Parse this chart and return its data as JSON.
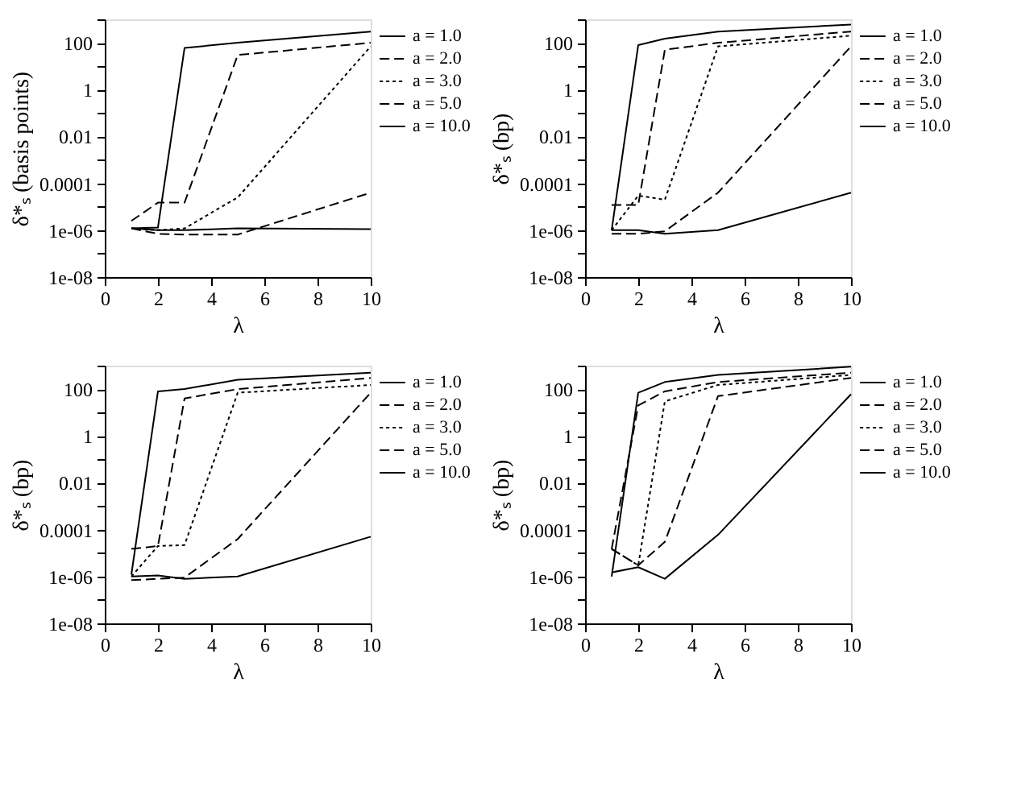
{
  "chart_data": [
    {
      "type": "line",
      "xlabel": "λ",
      "ylabel": "δ*ₛ (basis points)",
      "log": "y",
      "legend": "top right",
      "x": [
        1,
        2,
        3,
        5,
        10
      ],
      "xlim": [
        0,
        10
      ],
      "xticks": [
        0,
        2,
        4,
        6,
        8,
        10
      ],
      "ylim": [
        1e-08,
        1000
      ],
      "yticks": [
        {
          "value": 1e-08,
          "label": "1e-08"
        },
        {
          "value": 1e-07,
          "label": null
        },
        {
          "value": 1e-06,
          "label": "1e-06"
        },
        {
          "value": 1e-05,
          "label": null
        },
        0.0001,
        {
          "value": 0.001,
          "label": null
        },
        0.01,
        {
          "value": 0.1,
          "label": null
        },
        1,
        {
          "value": 10,
          "label": null
        },
        100,
        {
          "value": 1000,
          "label": null
        }
      ],
      "series": [
        {
          "name": "a = 1.0",
          "color": "#000000",
          "line_style": "solid",
          "values": [
            1.2e-06,
            1.3e-06,
            60,
            100,
            300
          ]
        },
        {
          "name": "a = 2.0",
          "color": "#000000",
          "line_style": "dashed",
          "values": [
            2.5e-06,
            1.5e-05,
            1.5e-05,
            30,
            100
          ]
        },
        {
          "name": "a = 3.0",
          "color": "#000000",
          "line_style": "dotted",
          "values": [
            1.2e-06,
            1e-06,
            1.2e-06,
            2.5e-05,
            70
          ]
        },
        {
          "name": "a = 5.0",
          "color": "#000000",
          "line_style": "dashed",
          "values": [
            1.2e-06,
            7e-07,
            6.5e-07,
            6.5e-07,
            4e-05
          ]
        },
        {
          "name": "a = 10.0",
          "color": "#000000",
          "line_style": "solid",
          "values": [
            1.2e-06,
            1e-06,
            1e-06,
            1.2e-06,
            1.1e-06
          ]
        }
      ]
    },
    {
      "type": "line",
      "xlabel": "λ",
      "ylabel": "δ*ₛ (bp)",
      "log": "y",
      "legend": "top right",
      "x": [
        1,
        2,
        3,
        5,
        10
      ],
      "xlim": [
        0,
        10
      ],
      "xticks": [
        0,
        2,
        4,
        6,
        8,
        10
      ],
      "ylim": [
        1e-08,
        1000
      ],
      "yticks": [
        {
          "value": 1e-08,
          "label": "1e-08"
        },
        {
          "value": 1e-07,
          "label": null
        },
        {
          "value": 1e-06,
          "label": "1e-06"
        },
        {
          "value": 1e-05,
          "label": null
        },
        0.0001,
        {
          "value": 0.001,
          "label": null
        },
        0.01,
        {
          "value": 0.1,
          "label": null
        },
        1,
        {
          "value": 10,
          "label": null
        },
        100,
        {
          "value": 1000,
          "label": null
        }
      ],
      "series": [
        {
          "name": "a = 1.0",
          "color": "#000000",
          "line_style": "solid",
          "values": [
            1e-06,
            80,
            150,
            300,
            600
          ]
        },
        {
          "name": "a = 2.0",
          "color": "#000000",
          "line_style": "dashed",
          "values": [
            1.2e-05,
            1.2e-05,
            50,
            100,
            300
          ]
        },
        {
          "name": "a = 3.0",
          "color": "#000000",
          "line_style": "dotted",
          "values": [
            1e-06,
            3e-05,
            2e-05,
            70,
            200
          ]
        },
        {
          "name": "a = 5.0",
          "color": "#000000",
          "line_style": "dashed",
          "values": [
            7e-07,
            7e-07,
            9e-07,
            4e-05,
            70
          ]
        },
        {
          "name": "a = 10.0",
          "color": "#000000",
          "line_style": "solid",
          "values": [
            1e-06,
            1e-06,
            7e-07,
            1e-06,
            4e-05
          ]
        }
      ]
    },
    {
      "type": "line",
      "xlabel": "λ",
      "ylabel": "δ*ₛ (bp)",
      "log": "y",
      "legend": "top right",
      "x": [
        1,
        2,
        3,
        5,
        10
      ],
      "xlim": [
        0,
        10
      ],
      "xticks": [
        0,
        2,
        4,
        6,
        8,
        10
      ],
      "ylim": [
        1e-08,
        1000
      ],
      "yticks": [
        {
          "value": 1e-08,
          "label": "1e-08"
        },
        {
          "value": 1e-07,
          "label": null
        },
        {
          "value": 1e-06,
          "label": "1e-06"
        },
        {
          "value": 1e-05,
          "label": null
        },
        0.0001,
        {
          "value": 0.001,
          "label": null
        },
        0.01,
        {
          "value": 0.1,
          "label": null
        },
        1,
        {
          "value": 10,
          "label": null
        },
        100,
        {
          "value": 1000,
          "label": null
        }
      ],
      "series": [
        {
          "name": "a = 1.0",
          "color": "#000000",
          "line_style": "solid",
          "values": [
            1.2e-06,
            80,
            100,
            250,
            500
          ]
        },
        {
          "name": "a = 2.0",
          "color": "#000000",
          "line_style": "dashed",
          "values": [
            1.5e-05,
            2e-05,
            40,
            100,
            300
          ]
        },
        {
          "name": "a = 3.0",
          "color": "#000000",
          "line_style": "dotted",
          "values": [
            1e-06,
            2e-05,
            2.2e-05,
            70,
            150
          ]
        },
        {
          "name": "a = 5.0",
          "color": "#000000",
          "line_style": "dashed",
          "values": [
            7e-07,
            8e-07,
            9e-07,
            4e-05,
            70
          ]
        },
        {
          "name": "a = 10.0",
          "color": "#000000",
          "line_style": "solid",
          "values": [
            1e-06,
            1.1e-06,
            8e-07,
            1e-06,
            5e-05
          ]
        }
      ]
    },
    {
      "type": "line",
      "xlabel": "λ",
      "ylabel": "δ*ₛ (bp)",
      "log": "y",
      "legend": "top right",
      "x": [
        1,
        2,
        3,
        5,
        10
      ],
      "xlim": [
        0,
        10
      ],
      "xticks": [
        0,
        2,
        4,
        6,
        8,
        10
      ],
      "ylim": [
        1e-08,
        1000
      ],
      "yticks": [
        {
          "value": 1e-08,
          "label": "1e-08"
        },
        {
          "value": 1e-07,
          "label": null
        },
        {
          "value": 1e-06,
          "label": "1e-06"
        },
        {
          "value": 1e-05,
          "label": null
        },
        0.0001,
        {
          "value": 0.001,
          "label": null
        },
        0.01,
        {
          "value": 0.1,
          "label": null
        },
        1,
        {
          "value": 10,
          "label": null
        },
        100,
        {
          "value": 1000,
          "label": null
        }
      ],
      "series": [
        {
          "name": "a = 1.0",
          "color": "#000000",
          "line_style": "solid",
          "values": [
            1e-06,
            70,
            200,
            400,
            900
          ]
        },
        {
          "name": "a = 2.0",
          "color": "#000000",
          "line_style": "dashed",
          "values": [
            1.5e-05,
            20,
            80,
            200,
            500
          ]
        },
        {
          "name": "a = 3.0",
          "color": "#000000",
          "line_style": "dotted",
          "values": [
            1.5e-05,
            3e-06,
            30,
            150,
            400
          ]
        },
        {
          "name": "a = 5.0",
          "color": "#000000",
          "line_style": "dashed",
          "values": [
            1.5e-05,
            3e-06,
            3e-05,
            50,
            300
          ]
        },
        {
          "name": "a = 10.0",
          "color": "#000000",
          "line_style": "solid",
          "values": [
            1.5e-06,
            2.5e-06,
            8e-07,
            6e-05,
            60
          ]
        }
      ]
    }
  ]
}
